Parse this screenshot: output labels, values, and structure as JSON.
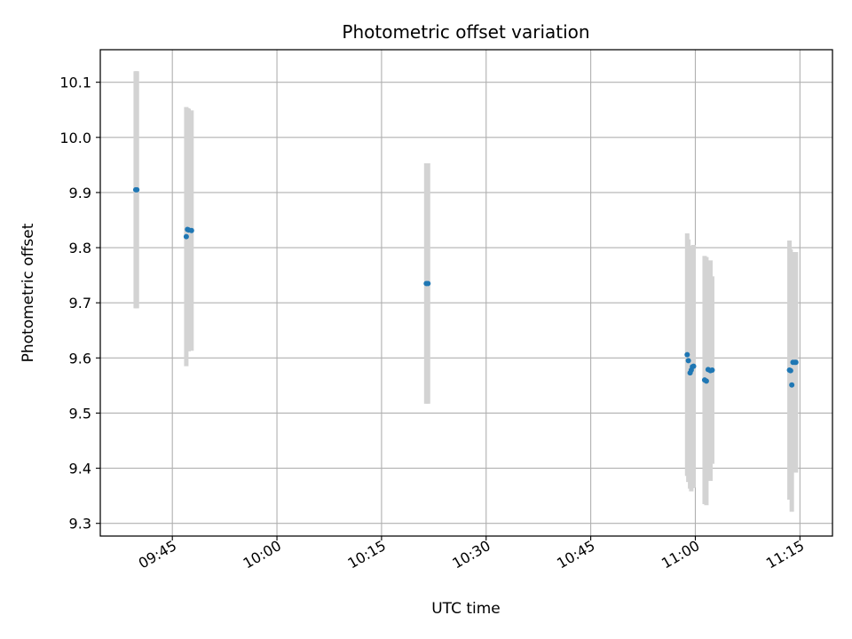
{
  "chart_data": {
    "type": "scatter",
    "title": "Photometric offset variation",
    "xlabel": "UTC time",
    "ylabel": "Photometric offset",
    "x_ticks": [
      "09:45",
      "10:00",
      "10:15",
      "10:30",
      "10:45",
      "11:00",
      "11:15"
    ],
    "y_ticks": [
      "9.3",
      "9.4",
      "9.5",
      "9.6",
      "9.7",
      "9.8",
      "9.9",
      "10.0",
      "10.1"
    ],
    "xlim": [
      "09:34:40",
      "11:19:40"
    ],
    "ylim": [
      9.277,
      10.159
    ],
    "grid": true,
    "colors": {
      "points": "#1f77b4",
      "errorbars": "#d3d3d3",
      "grid": "#b0b0b0"
    },
    "points": [
      {
        "t": "09:39:45",
        "y": 9.905,
        "err": 0.215
      },
      {
        "t": "09:39:55",
        "y": 9.905,
        "err": 0.215
      },
      {
        "t": "09:47:00",
        "y": 9.82,
        "err": 0.235
      },
      {
        "t": "09:47:10",
        "y": 9.833,
        "err": 0.22
      },
      {
        "t": "09:47:20",
        "y": 9.832,
        "err": 0.22
      },
      {
        "t": "09:47:45",
        "y": 9.831,
        "err": 0.218
      },
      {
        "t": "10:21:25",
        "y": 9.735,
        "err": 0.218
      },
      {
        "t": "10:21:40",
        "y": 9.735,
        "err": 0.218
      },
      {
        "t": "10:58:50",
        "y": 9.606,
        "err": 0.22
      },
      {
        "t": "10:59:00",
        "y": 9.595,
        "err": 0.22
      },
      {
        "t": "10:59:15",
        "y": 9.573,
        "err": 0.21
      },
      {
        "t": "10:59:25",
        "y": 9.578,
        "err": 0.22
      },
      {
        "t": "10:59:35",
        "y": 9.584,
        "err": 0.22
      },
      {
        "t": "10:59:45",
        "y": 9.585,
        "err": 0.22
      },
      {
        "t": "11:01:20",
        "y": 9.56,
        "err": 0.225
      },
      {
        "t": "11:01:35",
        "y": 9.558,
        "err": 0.225
      },
      {
        "t": "11:01:50",
        "y": 9.579,
        "err": 0.195
      },
      {
        "t": "11:02:10",
        "y": 9.577,
        "err": 0.2
      },
      {
        "t": "11:02:25",
        "y": 9.578,
        "err": 0.17
      },
      {
        "t": "11:13:30",
        "y": 9.578,
        "err": 0.235
      },
      {
        "t": "11:13:40",
        "y": 9.577,
        "err": 0.22
      },
      {
        "t": "11:13:50",
        "y": 9.551,
        "err": 0.23
      },
      {
        "t": "11:14:00",
        "y": 9.592,
        "err": 0.2
      },
      {
        "t": "11:14:15",
        "y": 9.592,
        "err": 0.2
      },
      {
        "t": "11:14:25",
        "y": 9.592,
        "err": 0.2
      }
    ]
  }
}
